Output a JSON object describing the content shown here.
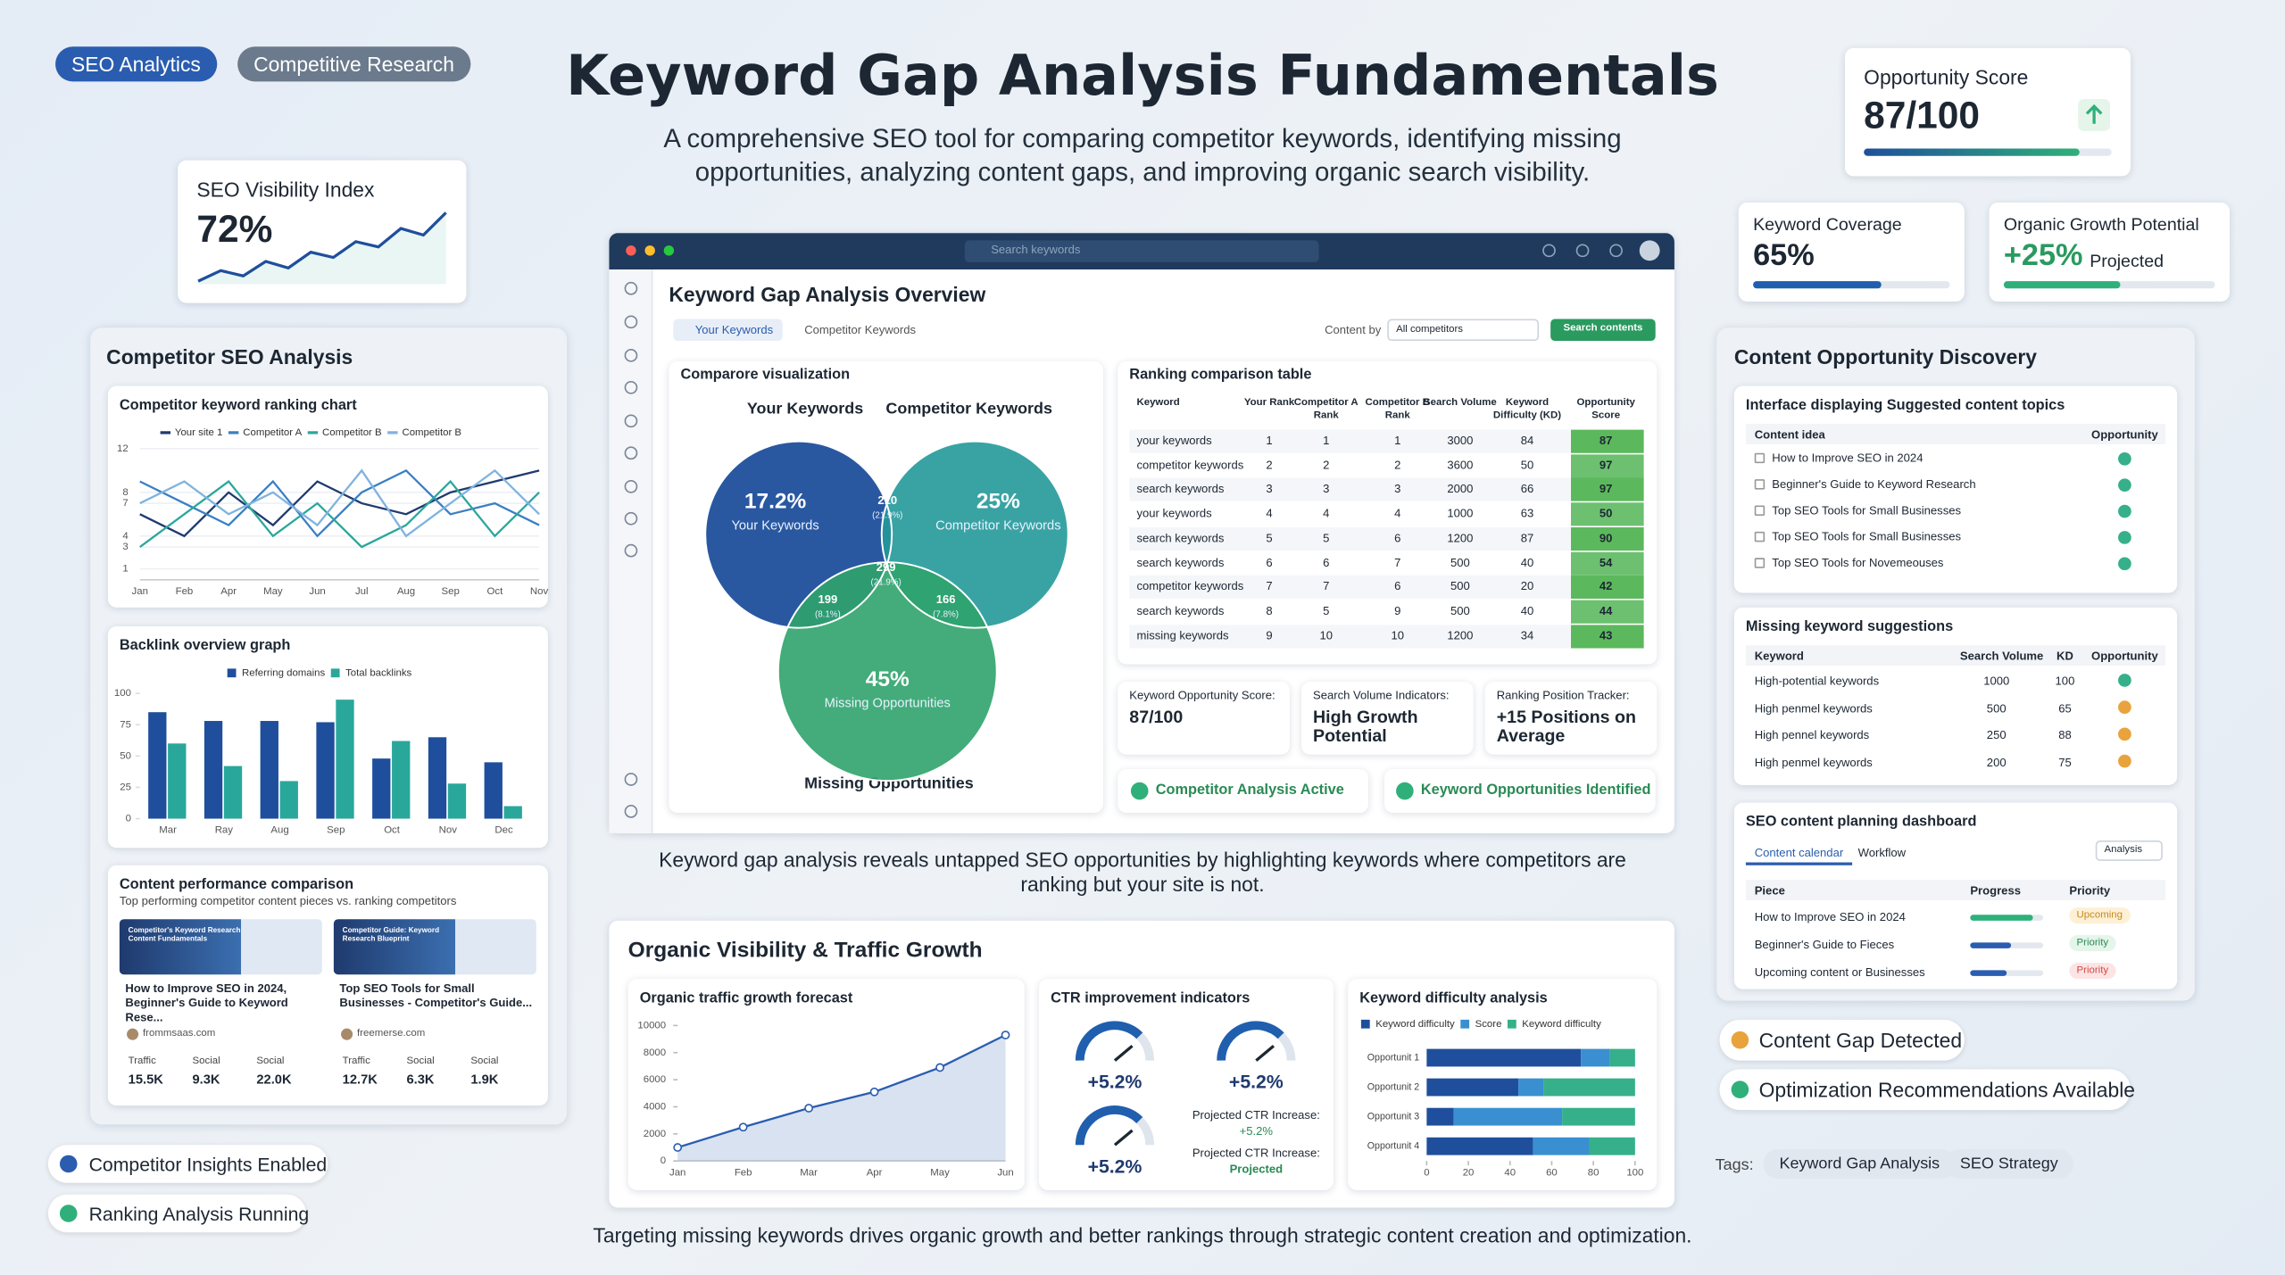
{
  "top_tags": [
    "SEO Analytics",
    "Competitive Research"
  ],
  "header": {
    "title": "Keyword Gap Analysis Fundamentals",
    "subtitle": "A comprehensive SEO tool for comparing competitor keywords, identifying missing opportunities, analyzing content gaps, and improving organic search visibility."
  },
  "visibility_card": {
    "label": "SEO Visibility Index",
    "value": "72%",
    "trend": [
      20,
      28,
      24,
      35,
      30,
      42,
      38,
      50,
      46,
      60,
      55,
      72
    ]
  },
  "opportunity_score": {
    "label": "Opportunity Score",
    "value": "87/100",
    "progress": 87
  },
  "keyword_coverage": {
    "label": "Keyword Coverage",
    "value": "65%",
    "progress": 65
  },
  "organic_growth": {
    "label": "Organic Growth Potential",
    "value": "+25%",
    "note": "Projected",
    "progress": 55
  },
  "competitor_panel": {
    "title": "Competitor SEO Analysis",
    "content": {
      "title": "Content performance comparison",
      "subtitle": "Top performing competitor content pieces vs. ranking competitors",
      "cards": [
        {
          "thumb": "Competitor's Keyword Research Content Fundamentals",
          "title": "How to Improve SEO in 2024, Beginner's Guide to Keyword Rese...",
          "source": "frommsaas.com",
          "stats": [
            {
              "label": "Traffic",
              "value": "15.5K"
            },
            {
              "label": "Social",
              "value": "9.3K"
            },
            {
              "label": "Social",
              "value": "22.0K"
            }
          ]
        },
        {
          "thumb": "Competitor Guide: Keyword Research Blueprint",
          "title": "Top SEO Tools for Small Businesses - Competitor's Guide...",
          "source": "freemerse.com",
          "stats": [
            {
              "label": "Traffic",
              "value": "12.7K"
            },
            {
              "label": "Social",
              "value": "6.3K"
            },
            {
              "label": "Social",
              "value": "1.9K"
            }
          ]
        }
      ]
    }
  },
  "left_badges": [
    "Competitor Insights Enabled",
    "Ranking Analysis Running"
  ],
  "dashboard": {
    "search": "Search keywords",
    "title": "Keyword Gap Analysis Overview",
    "tabs": [
      "Your Keywords",
      "Competitor Keywords"
    ],
    "filter_label": "Content by",
    "filter": "All competitors",
    "button": "Search contents",
    "venn": {
      "title": "Comparore visualization",
      "sets": [
        {
          "label": "Your Keywords",
          "value": "17.2%",
          "inner": "Your Keywords"
        },
        {
          "label": "Competitor Keywords",
          "value": "25%",
          "inner": "Competitor Keywords"
        },
        {
          "label": "Missing Opportunities",
          "value": "45%",
          "inner": "Missing Opportunities"
        }
      ],
      "intersections": [
        {
          "value": "210",
          "share": "(21.9%)"
        },
        {
          "value": "299",
          "share": "(21.9%)"
        },
        {
          "value": "199",
          "share": "(8.1%)"
        },
        {
          "value": "166",
          "share": "(7.8%)"
        }
      ]
    },
    "table": {
      "title": "Ranking comparison table",
      "headers": [
        "Keyword",
        "Your Rank",
        "Competitor A Rank",
        "Competitor B Rank",
        "Search Volume",
        "Keyword Difficulty (KD)",
        "Opportunity Score"
      ],
      "rows": [
        [
          "your keywords",
          1,
          1,
          1,
          3000,
          84,
          87
        ],
        [
          "competitor keywords",
          2,
          2,
          2,
          3600,
          50,
          97
        ],
        [
          "search keywords",
          3,
          3,
          3,
          2000,
          66,
          97
        ],
        [
          "your keywords",
          4,
          4,
          4,
          1000,
          63,
          50
        ],
        [
          "search keywords",
          5,
          5,
          6,
          1200,
          87,
          90
        ],
        [
          "search keywords",
          6,
          6,
          7,
          500,
          40,
          54
        ],
        [
          "competitor keywords",
          7,
          7,
          6,
          500,
          20,
          42
        ],
        [
          "search keywords",
          8,
          5,
          9,
          500,
          40,
          44
        ],
        [
          "missing keywords",
          9,
          10,
          10,
          1200,
          34,
          43
        ]
      ]
    },
    "metrics": [
      {
        "label": "Keyword Opportunity Score:",
        "value": "87/100"
      },
      {
        "label": "Search Volume Indicators:",
        "value": "High Growth Potential"
      },
      {
        "label": "Ranking Position Tracker:",
        "value": "+15 Positions on Average"
      }
    ],
    "status": [
      "Competitor Analysis Active",
      "Keyword Opportunities Identified"
    ]
  },
  "caption": "Keyword gap analysis reveals untapped SEO opportunities by highlighting keywords where competitors are ranking but your site is not.",
  "organic": {
    "title": "Organic Visibility & Traffic Growth",
    "ctr": {
      "title": "CTR improvement indicators",
      "gauges": [
        "+5.2%",
        "+5.2%",
        "+5.2%"
      ],
      "notes": [
        {
          "label": "Projected CTR Increase:",
          "value": "+5.2%"
        },
        {
          "label": "Projected CTR Increase:",
          "value": "Projected"
        }
      ]
    }
  },
  "footer": "Targeting missing keywords drives organic growth and better rankings through strategic content creation and optimization.",
  "content_discovery": {
    "title": "Content Opportunity Discovery",
    "suggestions": {
      "title": "Interface displaying Suggested content topics",
      "headers": [
        "Content idea",
        "Opportunity"
      ],
      "items": [
        "How to Improve SEO in 2024",
        "Beginner's Guide to Keyword Research",
        "Top SEO Tools for Small Businesses",
        "Top SEO Tools for Small Businesses",
        "Top SEO Tools for Novemeouses"
      ]
    },
    "missing": {
      "title": "Missing keyword suggestions",
      "headers": [
        "Keyword",
        "Search Volume",
        "KD",
        "Opportunity"
      ],
      "rows": [
        [
          "High-potential keywords",
          1000,
          100
        ],
        [
          "High penmel keywords",
          500,
          65
        ],
        [
          "High pennel keywords",
          250,
          88
        ],
        [
          "High penmel keywords",
          200,
          75
        ]
      ]
    },
    "planning": {
      "title": "SEO content planning dashboard",
      "tabs": [
        "Content calendar",
        "Workflow"
      ],
      "filter": "Analysis",
      "headers": [
        "Piece",
        "Progress",
        "Priority"
      ],
      "rows": [
        {
          "piece": "How to Improve SEO in 2024",
          "progress": 85,
          "priority": "Upcoming"
        },
        {
          "piece": "Beginner's Guide to Fieces",
          "progress": 55,
          "priority": "Priority"
        },
        {
          "piece": "Upcoming content or Businesses",
          "progress": 50,
          "priority": "Priority"
        }
      ]
    }
  },
  "right_badges": [
    "Content Gap Detected",
    "Optimization Recommendations Available"
  ],
  "tags": {
    "label": "Tags:",
    "items": [
      "Keyword Gap Analysis",
      "SEO Strategy"
    ]
  },
  "chart_data": [
    {
      "type": "line",
      "title": "Competitor keyword ranking chart",
      "categories": [
        "Jan",
        "Feb",
        "Apr",
        "May",
        "Jun",
        "Jul",
        "Aug",
        "Sep",
        "Oct",
        "Nov"
      ],
      "series": [
        {
          "name": "Your site 1",
          "color": "#1f3a6e",
          "values": [
            6,
            4,
            8,
            5,
            9,
            7,
            6,
            8,
            9,
            10
          ]
        },
        {
          "name": "Competitor A",
          "color": "#3a7fc4",
          "values": [
            9,
            7,
            5,
            9,
            4,
            8,
            10,
            6,
            7,
            5
          ]
        },
        {
          "name": "Competitor B",
          "color": "#2aa79b",
          "values": [
            3,
            6,
            9,
            4,
            7,
            3,
            5,
            9,
            4,
            8
          ]
        },
        {
          "name": "Competitor B",
          "color": "#7fb3e0",
          "values": [
            7,
            9,
            6,
            8,
            5,
            10,
            4,
            7,
            10,
            6
          ]
        }
      ],
      "ylim": [
        0,
        12
      ],
      "yticks": [
        1,
        3,
        4,
        7,
        8,
        12
      ],
      "grid": true
    },
    {
      "type": "bar",
      "title": "Backlink overview graph",
      "categories": [
        "Mar",
        "Ray",
        "Aug",
        "Sep",
        "Oct",
        "Nov",
        "Dec"
      ],
      "series": [
        {
          "name": "Referring domains",
          "color": "#1f4f9c",
          "values": [
            85,
            78,
            78,
            77,
            48,
            65,
            45
          ]
        },
        {
          "name": "Total backlinks",
          "color": "#2aa79b",
          "values": [
            60,
            42,
            30,
            95,
            62,
            28,
            10
          ]
        }
      ],
      "ylim": [
        0,
        100
      ],
      "yticks": [
        0,
        25,
        50,
        75,
        100
      ],
      "grid": false
    },
    {
      "type": "line",
      "title": "Organic traffic growth forecast",
      "categories": [
        "Jan",
        "Feb",
        "Mar",
        "Apr",
        "May",
        "Jun"
      ],
      "series": [
        {
          "name": "Organic traffic",
          "color": "#2a5db0",
          "values": [
            1000,
            2500,
            3900,
            5100,
            6900,
            9300
          ]
        }
      ],
      "ylim": [
        0,
        10000
      ],
      "yticks": [
        0,
        2000,
        4000,
        6000,
        8000,
        10000
      ],
      "grid": false,
      "area": true,
      "markers": true
    },
    {
      "type": "hbar",
      "title": "Keyword difficulty analysis",
      "categories": [
        "Opportunit 1",
        "Opportunit 2",
        "Opportunit 3",
        "Opportunit 4"
      ],
      "series": [
        {
          "name": "Keyword difficulty",
          "color": "#1f4f9c",
          "values": [
            74,
            44,
            13,
            51
          ]
        },
        {
          "name": "Score",
          "color": "#3a8fd0",
          "values": [
            14,
            12,
            52,
            27
          ]
        },
        {
          "name": "Keyword difficulty",
          "color": "#35b08a",
          "values": [
            12,
            44,
            35,
            22
          ]
        }
      ],
      "xlim": [
        0,
        100
      ],
      "xticks": [
        0,
        20,
        40,
        60,
        80,
        100
      ],
      "stacked": true
    }
  ]
}
